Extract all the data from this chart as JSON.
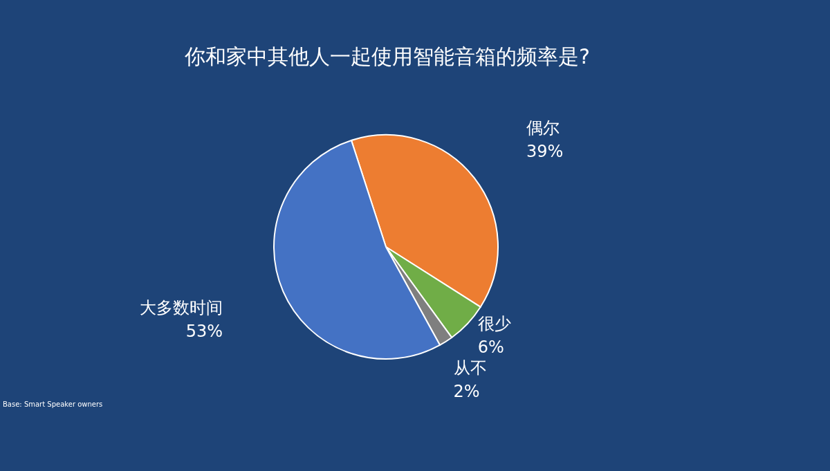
{
  "chart_data": {
    "type": "pie",
    "title": "你和家中其他人一起使用智能音箱的频率是?",
    "categories": [
      "偶尔",
      "很少",
      "从不",
      "大多数时间"
    ],
    "values": [
      39,
      6,
      2,
      53
    ],
    "colors": [
      "#ed7d31",
      "#70ad47",
      "#7f7f7f",
      "#4472c4"
    ],
    "value_labels": [
      "39%",
      "6%",
      "2%",
      "53%"
    ],
    "annotations": [
      "Base: Smart Speaker owners"
    ]
  }
}
